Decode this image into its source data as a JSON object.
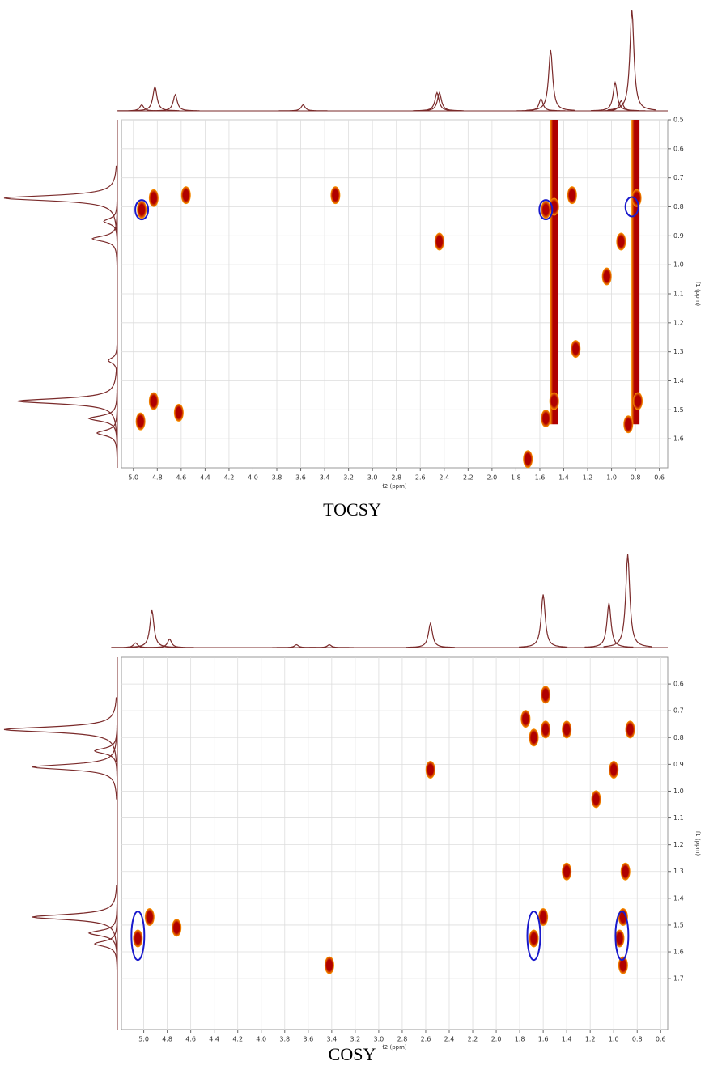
{
  "chart_data": [
    {
      "type": "scatter",
      "title": "TOCSY",
      "xlabel": "f2 (ppm)",
      "ylabel": "f1 (ppm)",
      "xlim": [
        5.1,
        0.53
      ],
      "ylim": [
        0.5,
        1.7
      ],
      "xticks": [
        {
          "value": 5.0,
          "label": "5.0"
        },
        4.8,
        4.6,
        4.4,
        4.2,
        {
          "value": 4.0,
          "label": "4.0"
        },
        3.8,
        3.6,
        3.4,
        3.2,
        {
          "value": 3.0,
          "label": "3.0"
        },
        2.8,
        2.6,
        2.4,
        2.2,
        {
          "value": 2.0,
          "label": "2.0"
        },
        1.8,
        1.6,
        1.4,
        1.2,
        {
          "value": 1.0,
          "label": "1.0"
        },
        0.8,
        0.6
      ],
      "yticks": [
        0.5,
        0.6,
        0.7,
        0.8,
        0.9,
        {
          "value": 1.0,
          "label": "1.0"
        },
        1.1,
        1.2,
        1.3,
        1.4,
        1.5,
        1.6
      ],
      "grid": true,
      "colors": [
        "#b00000",
        "#ff9d00"
      ],
      "projection_color": "#7a2a2a",
      "highlight_color": "#1a1acc",
      "x": [
        4.93,
        4.83,
        4.56,
        3.31,
        2.44,
        1.55,
        1.48,
        1.33,
        0.79,
        0.92,
        1.04,
        0.78,
        0.86,
        1.3,
        1.48,
        1.55,
        4.83,
        4.94,
        4.62,
        1.7
      ],
      "values": [
        0.81,
        0.77,
        0.76,
        0.76,
        0.92,
        0.81,
        0.8,
        0.76,
        0.77,
        0.92,
        1.04,
        1.47,
        1.55,
        1.29,
        1.47,
        1.53,
        1.47,
        1.54,
        1.51,
        1.67
      ],
      "ridges": {
        "x": [
          1.48,
          0.8
        ],
        "from": [
          0.5,
          0.5
        ],
        "to": [
          1.55,
          1.55
        ]
      },
      "highlights": {
        "x": [
          4.93,
          1.55,
          0.83
        ],
        "y": [
          0.81,
          0.81,
          0.8
        ]
      },
      "top_projection": {
        "x": [
          4.93,
          4.82,
          4.65,
          3.58,
          2.46,
          2.44,
          1.59,
          1.51,
          0.97,
          0.92,
          0.83
        ],
        "values": [
          6,
          24,
          16,
          6,
          18,
          18,
          12,
          60,
          28,
          10,
          100
        ]
      },
      "side_projection": {
        "y": [
          0.77,
          0.85,
          0.91,
          1.33,
          1.47,
          1.53,
          1.58
        ],
        "values": [
          100,
          12,
          22,
          8,
          88,
          25,
          18
        ]
      }
    },
    {
      "type": "scatter",
      "title": "COSY",
      "xlabel": "f2 (ppm)",
      "ylabel": "f1 (ppm)",
      "xlim": [
        5.19,
        0.54
      ],
      "ylim": [
        0.5,
        1.89
      ],
      "xticks": [
        {
          "value": 5.0,
          "label": "5.0"
        },
        4.8,
        4.6,
        4.4,
        4.2,
        {
          "value": 4.0,
          "label": "4.0"
        },
        3.8,
        3.6,
        3.4,
        3.2,
        {
          "value": 3.0,
          "label": "3.0"
        },
        2.8,
        2.6,
        2.4,
        2.2,
        {
          "value": 2.0,
          "label": "2.0"
        },
        1.8,
        1.6,
        1.4,
        1.2,
        {
          "value": 1.0,
          "label": "1.0"
        },
        0.8,
        0.6
      ],
      "yticks": [
        0.6,
        0.7,
        0.8,
        0.9,
        {
          "value": 1.0,
          "label": "1.0"
        },
        1.1,
        1.2,
        1.3,
        1.4,
        1.5,
        1.6,
        1.7
      ],
      "grid": true,
      "colors": [
        "#b00000",
        "#ff9d00"
      ],
      "projection_color": "#7a2a2a",
      "highlight_color": "#1a1acc",
      "x": [
        5.05,
        4.95,
        4.72,
        3.42,
        2.56,
        1.58,
        1.68,
        1.75,
        1.4,
        1.58,
        0.86,
        1.0,
        1.15,
        1.4,
        0.9,
        1.6,
        1.68,
        0.92,
        0.95,
        0.92
      ],
      "values": [
        1.55,
        1.47,
        1.51,
        1.65,
        0.92,
        0.77,
        0.8,
        0.73,
        0.77,
        0.64,
        0.77,
        0.92,
        1.03,
        1.3,
        1.3,
        1.47,
        1.55,
        1.47,
        1.55,
        1.65
      ],
      "ridges": {
        "x": [],
        "from": [],
        "to": []
      },
      "highlights": {
        "x": [
          5.05,
          1.68,
          0.93
        ],
        "y": [
          1.54,
          1.54,
          1.54
        ]
      },
      "top_projection": {
        "x": [
          5.07,
          4.93,
          4.78,
          3.7,
          3.42,
          2.56,
          1.6,
          1.04,
          0.88
        ],
        "values": [
          5,
          40,
          9,
          3,
          3,
          26,
          57,
          48,
          100
        ]
      },
      "side_projection": {
        "y": [
          0.77,
          0.85,
          0.91,
          1.47,
          1.53,
          1.57
        ],
        "values": [
          100,
          20,
          75,
          75,
          25,
          20
        ]
      }
    }
  ]
}
